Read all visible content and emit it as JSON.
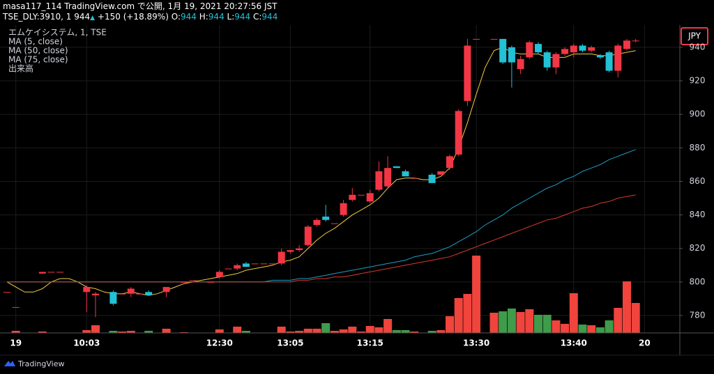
{
  "header": {
    "title": "masa117_114 TradingView.com で公開, 1月 19, 2021 20:27:56 JST",
    "symbol": "TSE_DLY:3910, 1 944",
    "change_arrow": "▲",
    "change": "+150 (+18.89%)",
    "ohlc": [
      {
        "label": "O:",
        "value": "944"
      },
      {
        "label": "H:",
        "value": "944"
      },
      {
        "label": "L:",
        "value": "944"
      },
      {
        "label": "C:",
        "value": "944"
      }
    ]
  },
  "chart_data": {
    "type": "candlestick",
    "currency": "JPY",
    "categories": [
      null,
      "19",
      null,
      null,
      null,
      null,
      null,
      null,
      null,
      "10:03",
      null,
      null,
      null,
      null,
      null,
      null,
      null,
      null,
      null,
      null,
      null,
      null,
      null,
      null,
      "12:30",
      null,
      null,
      null,
      null,
      null,
      null,
      null,
      "13:05",
      null,
      null,
      null,
      null,
      null,
      null,
      null,
      null,
      "13:15",
      null,
      null,
      null,
      null,
      null,
      null,
      null,
      null,
      null,
      null,
      null,
      "13:30",
      null,
      null,
      null,
      null,
      null,
      null,
      null,
      null,
      null,
      null,
      "13:40",
      null,
      null,
      null,
      null,
      null,
      null,
      null,
      "20"
    ],
    "candles": {
      "name": "エムケイシステム, 1, TSE",
      "up_color": "#f23645",
      "down_color": "#22c1d6",
      "open": [
        794,
        785,
        null,
        null,
        805,
        806,
        806,
        null,
        null,
        794,
        792,
        null,
        794,
        793,
        793,
        793,
        794,
        null,
        794,
        null,
        800,
        801,
        null,
        800,
        803,
        808,
        808,
        811,
        811,
        811,
        811,
        811,
        818,
        819,
        822,
        834,
        839,
        835,
        840,
        849,
        852,
        848,
        855,
        857,
        869,
        866,
        862,
        null,
        864,
        864,
        868,
        876,
        908,
        945,
        null,
        945,
        945,
        940,
        927,
        934,
        942,
        937,
        928,
        936,
        937,
        941,
        938,
        935,
        937,
        926,
        939,
        944,
        null
      ],
      "high": [
        794,
        785,
        null,
        null,
        806,
        806,
        806,
        null,
        null,
        798,
        794,
        null,
        795,
        793,
        797,
        793,
        795,
        null,
        797,
        null,
        800,
        801,
        null,
        800,
        807,
        808,
        811,
        812,
        811,
        811,
        811,
        820,
        819,
        822,
        834,
        838,
        846,
        835,
        849,
        856,
        852,
        855,
        872,
        875,
        869,
        867,
        862,
        null,
        865,
        866,
        876,
        903,
        945,
        945,
        null,
        945,
        945,
        941,
        935,
        944,
        943,
        938,
        937,
        940,
        942,
        942,
        941,
        936,
        938,
        942,
        945,
        945,
        null
      ],
      "low": [
        794,
        785,
        null,
        null,
        805,
        806,
        806,
        null,
        null,
        782,
        779,
        null,
        786,
        793,
        791,
        793,
        792,
        null,
        791,
        null,
        800,
        801,
        null,
        800,
        802,
        808,
        807,
        809,
        811,
        811,
        811,
        810,
        817,
        818,
        821,
        833,
        836,
        835,
        839,
        848,
        852,
        847,
        854,
        856,
        868,
        863,
        862,
        null,
        859,
        864,
        867,
        875,
        905,
        945,
        null,
        945,
        930,
        916,
        924,
        933,
        936,
        926,
        924,
        935,
        934,
        937,
        937,
        933,
        925,
        922,
        938,
        943,
        null
      ],
      "close": [
        794,
        785,
        null,
        null,
        806,
        806,
        806,
        null,
        null,
        797,
        793,
        null,
        787,
        793,
        796,
        793,
        792,
        null,
        797,
        null,
        800,
        801,
        null,
        800,
        806,
        808,
        810,
        809,
        811,
        811,
        811,
        818,
        819,
        820,
        833,
        837,
        837,
        835,
        847,
        852,
        852,
        853,
        866,
        868,
        868,
        863,
        862,
        null,
        859,
        866,
        875,
        902,
        941,
        945,
        null,
        945,
        931,
        931,
        933,
        943,
        937,
        928,
        936,
        939,
        941,
        938,
        940,
        934,
        926,
        941,
        944,
        944,
        null
      ]
    },
    "series": [
      {
        "name": "MA (5, close)",
        "color": "#f2cd3c",
        "values": [
          800,
          797,
          794,
          794,
          796,
          800,
          802,
          802,
          800,
          797,
          796,
          794,
          793,
          793,
          794,
          793,
          792,
          793,
          795,
          797,
          799,
          800,
          801,
          802,
          803,
          804,
          805,
          807,
          808,
          809,
          810,
          812,
          813,
          815,
          820,
          825,
          829,
          832,
          836,
          840,
          843,
          846,
          850,
          856,
          861,
          862,
          862,
          861,
          861,
          863,
          868,
          880,
          895,
          912,
          928,
          938,
          940,
          937,
          936,
          936,
          936,
          934,
          934,
          934,
          936,
          936,
          936,
          935,
          935,
          936,
          937,
          938,
          null
        ]
      },
      {
        "name": "MA (50, close)",
        "color": "#1e9fc4",
        "values": [
          800,
          800,
          800,
          800,
          800,
          800,
          800,
          800,
          800,
          800,
          800,
          800,
          800,
          800,
          800,
          800,
          800,
          800,
          800,
          800,
          800,
          800,
          800,
          800,
          800,
          800,
          800,
          800,
          800,
          800,
          801,
          801,
          801,
          802,
          802,
          803,
          804,
          805,
          806,
          807,
          808,
          809,
          810,
          811,
          812,
          813,
          815,
          816,
          817,
          819,
          821,
          824,
          827,
          830,
          834,
          837,
          840,
          844,
          847,
          850,
          853,
          856,
          858,
          861,
          863,
          866,
          868,
          870,
          873,
          875,
          877,
          879,
          null
        ]
      },
      {
        "name": "MA (75, close)",
        "color": "#d63a2f",
        "values": [
          800,
          800,
          800,
          800,
          800,
          800,
          800,
          800,
          800,
          800,
          800,
          800,
          800,
          800,
          800,
          800,
          800,
          800,
          800,
          800,
          800,
          800,
          800,
          800,
          800,
          800,
          800,
          800,
          800,
          800,
          800,
          800,
          800,
          801,
          801,
          802,
          802,
          803,
          803,
          804,
          805,
          806,
          807,
          808,
          809,
          810,
          811,
          812,
          813,
          814,
          815,
          817,
          819,
          821,
          823,
          825,
          827,
          829,
          831,
          833,
          835,
          837,
          838,
          840,
          842,
          844,
          845,
          847,
          848,
          850,
          851,
          852,
          null
        ]
      }
    ],
    "volume": {
      "name": "出来高",
      "up_color": "#f0443c",
      "down_color": "#3e9c4a",
      "ylim": [
        0,
        438
      ],
      "values": [
        null,
        3,
        null,
        null,
        2,
        null,
        null,
        null,
        null,
        4,
        11,
        null,
        3,
        2,
        3,
        null,
        3,
        null,
        6,
        null,
        1,
        null,
        null,
        null,
        5,
        null,
        9,
        3,
        null,
        null,
        null,
        9,
        2,
        3,
        6,
        6,
        14,
        3,
        5,
        9,
        2,
        10,
        8,
        20,
        4,
        4,
        2,
        null,
        3,
        4,
        24,
        50,
        56,
        111,
        null,
        29,
        31,
        35,
        30,
        34,
        26,
        26,
        18,
        13,
        57,
        12,
        11,
        8,
        18,
        36,
        74,
        43,
        null
      ]
    },
    "ylim": [
      769.6,
      951.6
    ],
    "yticks": [
      780,
      800,
      820,
      840,
      860,
      880,
      900,
      920,
      940
    ],
    "grid": true
  },
  "footer": {
    "brand": "TradingView"
  }
}
